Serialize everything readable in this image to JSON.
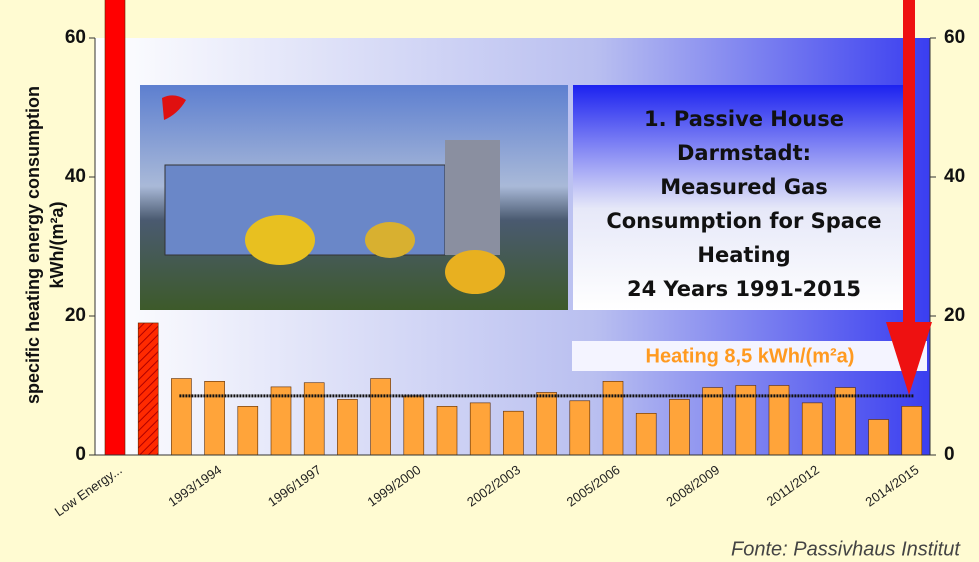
{
  "chart_data": {
    "type": "bar",
    "y_label_lines": [
      "specific heating energy consumption",
      "kWh/(m²a)"
    ],
    "title_lines": [
      "1. Passive House",
      "Darmstadt:",
      "Measured Gas",
      "Consumption for Space",
      "Heating",
      "24 Years 1991-2015"
    ],
    "source": "Fonte: Passivhaus Institut",
    "categories": [
      "Low Energy...",
      null,
      null,
      "1993/1994",
      null,
      null,
      "1996/1997",
      null,
      null,
      "1999/2000",
      null,
      null,
      "2002/2003",
      null,
      null,
      "2005/2006",
      null,
      null,
      "2008/2009",
      null,
      null,
      "2011/2012",
      null,
      null,
      "2014/2015"
    ],
    "values": [
      66,
      19,
      11,
      10.6,
      7,
      9.8,
      10.4,
      8,
      11,
      8.5,
      7,
      7.5,
      6.3,
      9,
      7.8,
      10.6,
      6,
      8,
      9.7,
      10,
      10,
      7.5,
      9.7,
      5.1,
      7
    ],
    "colors": [
      "#ff0000",
      "#ff2a00",
      "#ffa43a",
      "#ffa43a",
      "#ffa43a",
      "#ffa43a",
      "#ffa43a",
      "#ffa43a",
      "#ffa43a",
      "#ffa43a",
      "#ffa43a",
      "#ffa43a",
      "#ffa43a",
      "#ffa43a",
      "#ffa43a",
      "#ffa43a",
      "#ffa43a",
      "#ffa43a",
      "#ffa43a",
      "#ffa43a",
      "#ffa43a",
      "#ffa43a",
      "#ffa43a",
      "#ffa43a",
      "#ffa43a"
    ],
    "hatched": [
      false,
      true,
      false,
      false,
      false,
      false,
      false,
      false,
      false,
      false,
      false,
      false,
      false,
      false,
      false,
      false,
      false,
      false,
      false,
      false,
      false,
      false,
      false,
      false,
      false
    ],
    "reference_line": {
      "value": 8.5,
      "label": "Heating 8,5 kWh/(m²a)"
    },
    "ylim": [
      0,
      60
    ],
    "yticks": [
      0,
      20,
      40,
      60
    ],
    "y2lim": [
      0,
      60
    ],
    "y2ticks": [
      0,
      20,
      40,
      60
    ],
    "grid": false
  }
}
